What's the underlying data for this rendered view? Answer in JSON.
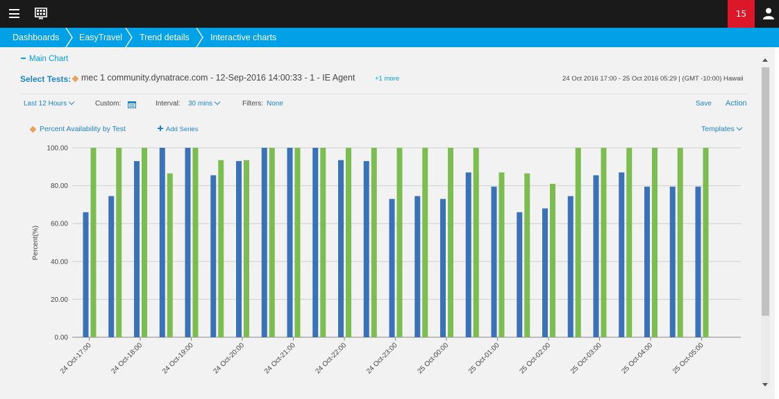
{
  "topbar": {
    "notification_count": "15",
    "icons": [
      "menu-icon",
      "dashboard-monitor-icon",
      "user-icon"
    ]
  },
  "breadcrumb": {
    "items": [
      {
        "label": "Dashboards"
      },
      {
        "label": "EasyTravel"
      },
      {
        "label": "Trend details"
      },
      {
        "label": "Interactive charts"
      }
    ]
  },
  "main": {
    "section_toggle": "Main Chart",
    "select_tests_label": "Select Tests:",
    "test_name": "mec 1 community.dynatrace.com - 12-Sep-2016 14:00:33 - 1 - IE Agent",
    "more_link": "+1 more",
    "time_range": "24 Oct 2016 17:00 - 25 Oct 2016 05:29  | (GMT -10:00) Hawaii",
    "toolbar": {
      "range": "Last 12 Hours",
      "custom_label": "Custom:",
      "interval_label": "Interval:",
      "interval_value": "30 mins",
      "filters_label": "Filters:",
      "filters_value": "None",
      "save": "Save",
      "action": "Action"
    },
    "series_link": "Percent Availability by Test",
    "add_series": "Add Series",
    "templates": "Templates"
  },
  "colors": {
    "series_blue": "#3b72b7",
    "series_green": "#7cbd52",
    "accent": "#00a1e6",
    "badge_red": "#dc172a",
    "diamond": "#e8a35a"
  },
  "chart_data": {
    "type": "bar",
    "ylabel": "Percent(%)",
    "ylim": [
      0,
      100
    ],
    "yticks": [
      "0.00",
      "20.00",
      "40.00",
      "60.00",
      "80.00",
      "100.00"
    ],
    "grid": true,
    "categories": [
      "24 Oct-17:00",
      "24 Oct-17:30",
      "24 Oct-18:00",
      "24 Oct-18:30",
      "24 Oct-19:00",
      "24 Oct-19:30",
      "24 Oct-20:00",
      "24 Oct-20:30",
      "24 Oct-21:00",
      "24 Oct-21:30",
      "24 Oct-22:00",
      "24 Oct-22:30",
      "24 Oct-23:00",
      "24 Oct-23:30",
      "25 Oct-00:00",
      "25 Oct-00:30",
      "25 Oct-01:00",
      "25 Oct-01:30",
      "25 Oct-02:00",
      "25 Oct-02:30",
      "25 Oct-03:00",
      "25 Oct-03:30",
      "25 Oct-04:00",
      "25 Oct-04:30",
      "25 Oct-05:00"
    ],
    "tick_labels": [
      "24 Oct-17:00",
      "24 Oct-18:00",
      "24 Oct-19:00",
      "24 Oct-20:00",
      "24 Oct-21:00",
      "24 Oct-22:00",
      "24 Oct-23:00",
      "25 Oct-00:00",
      "25 Oct-01:00",
      "25 Oct-02:00",
      "25 Oct-03:00",
      "25 Oct-04:00",
      "25 Oct-05:00"
    ],
    "series": [
      {
        "color": "#3b72b7",
        "values": [
          66,
          74.5,
          93,
          100,
          100,
          85.5,
          93,
          100,
          100,
          100,
          93.5,
          93,
          73,
          74.5,
          73,
          87,
          79.5,
          66,
          68,
          74.5,
          85.5,
          87,
          79.5,
          79.5,
          79.5
        ]
      },
      {
        "color": "#7cbd52",
        "values": [
          100,
          100,
          100,
          86.5,
          100,
          93.5,
          93.5,
          100,
          100,
          100,
          100,
          100,
          100,
          100,
          100,
          100,
          87,
          86.5,
          81,
          100,
          100,
          100,
          100,
          100,
          100
        ]
      }
    ]
  }
}
